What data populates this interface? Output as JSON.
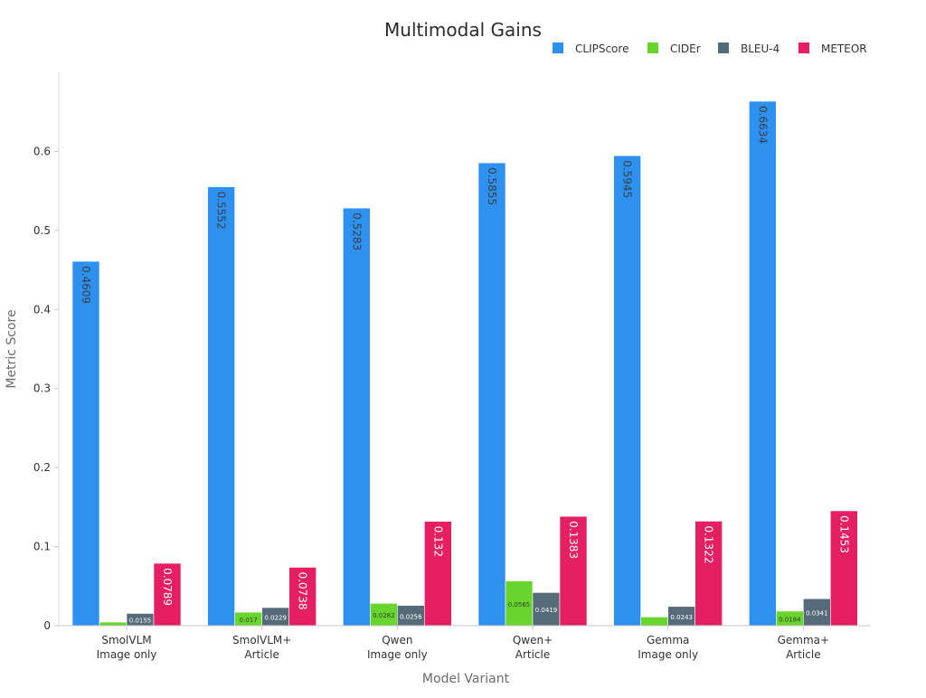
{
  "chart_data": {
    "type": "bar",
    "title": "Multimodal Gains",
    "xlabel": "Model Variant",
    "ylabel": "Metric Score",
    "ylim": [
      0,
      0.7
    ],
    "yticks": [
      0,
      0.1,
      0.2,
      0.3,
      0.4,
      0.5,
      0.6
    ],
    "ytick_labels": [
      "0",
      "0.1",
      "0.2",
      "0.3",
      "0.4",
      "0.5",
      "0.6"
    ],
    "grid": false,
    "legend_position": "top-right",
    "categories": [
      [
        "SmolVLM",
        "Image only"
      ],
      [
        "SmolVLM+",
        "Article"
      ],
      [
        "Qwen",
        "Image only"
      ],
      [
        "Qwen+",
        "Article"
      ],
      [
        "Gemma",
        "Image only"
      ],
      [
        "Gemma+",
        "Article"
      ]
    ],
    "series": [
      {
        "name": "CLIPScore",
        "color": "#2E91F0",
        "label_color": "#3a3f45",
        "values": [
          0.4609,
          0.5552,
          0.5283,
          0.5855,
          0.5945,
          0.6634
        ],
        "labels": [
          "0.4609",
          "0.5552",
          "0.5283",
          "0.5855",
          "0.5945",
          "0.6634"
        ]
      },
      {
        "name": "CIDEr",
        "color": "#68D42E",
        "label_color": "#2f3d22",
        "values": [
          0.0045,
          0.017,
          0.0282,
          0.0565,
          0.011,
          0.0184
        ],
        "labels": [
          "",
          "0.017",
          "0.0282",
          "0.0565",
          "",
          "0.0184"
        ]
      },
      {
        "name": "BLEU-4",
        "color": "#566B7A",
        "label_color": "#ffffff",
        "values": [
          0.0155,
          0.0229,
          0.0256,
          0.0419,
          0.0243,
          0.0341
        ],
        "labels": [
          "0.0155",
          "0.0229",
          "0.0256",
          "0.0419",
          "0.0243",
          "0.0341"
        ]
      },
      {
        "name": "METEOR",
        "color": "#E61E62",
        "label_color": "#ffffff",
        "values": [
          0.0789,
          0.0738,
          0.132,
          0.1383,
          0.1322,
          0.1453
        ],
        "labels": [
          "0.0789",
          "0.0738",
          "0.132",
          "0.1383",
          "0.1322",
          "0.1453"
        ]
      }
    ]
  }
}
